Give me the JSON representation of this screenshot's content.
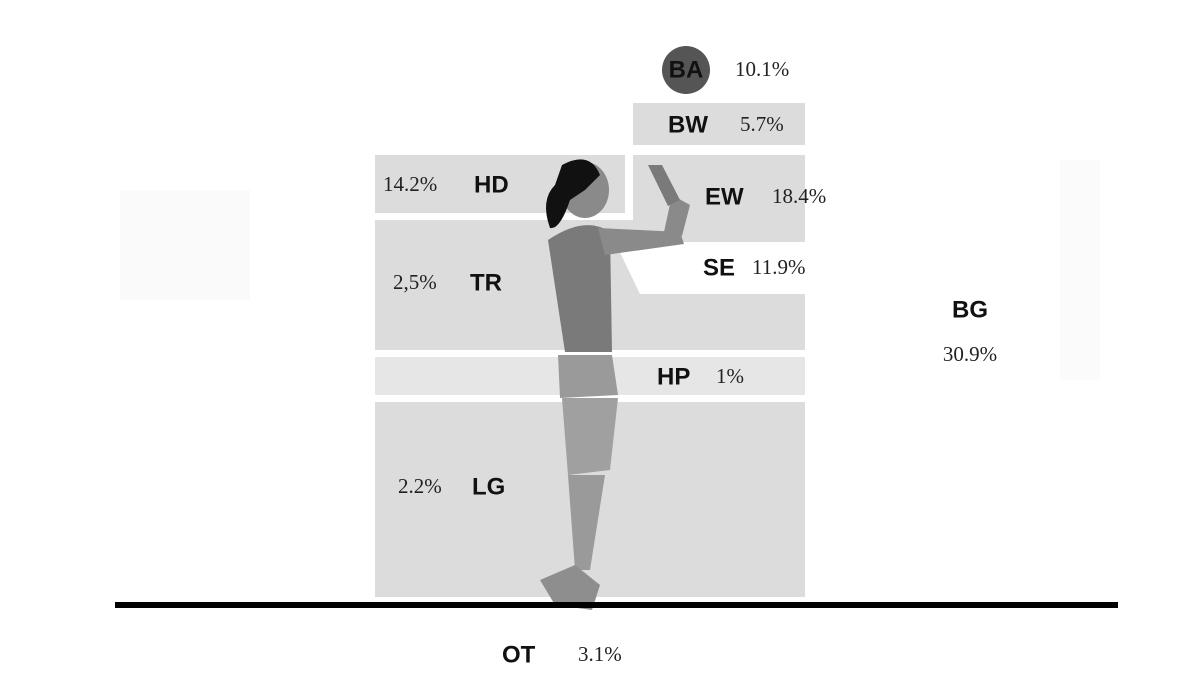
{
  "regions": [
    {
      "label": "BA",
      "value": "10.1%"
    },
    {
      "label": "BW",
      "value": "5.7%"
    },
    {
      "label": "HD",
      "value": "14.2%"
    },
    {
      "label": "EW",
      "value": "18.4%"
    },
    {
      "label": "TR",
      "value": "2,5%"
    },
    {
      "label": "SE",
      "value": "11.9%"
    },
    {
      "label": "HP",
      "value": "1%"
    },
    {
      "label": "LG",
      "value": "2.2%"
    },
    {
      "label": "OT",
      "value": "3.1%"
    },
    {
      "label": "BG",
      "value": "30.9%"
    }
  ]
}
